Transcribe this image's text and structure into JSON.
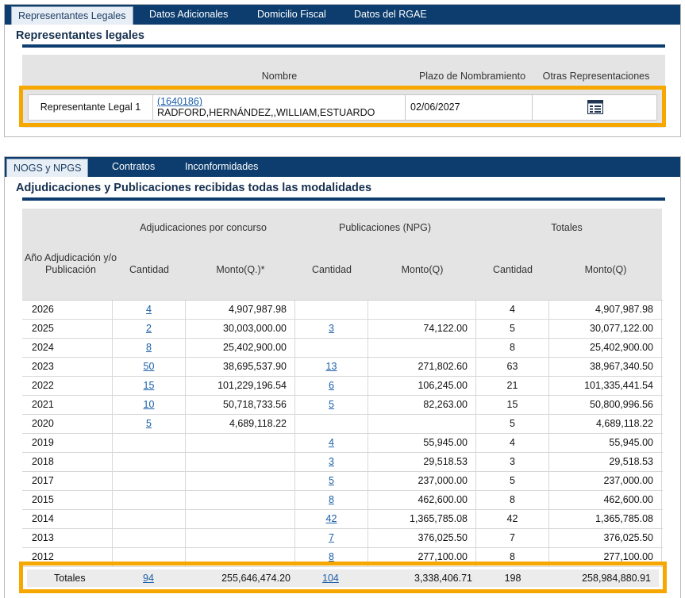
{
  "top_tabs": [
    "Representantes Legales",
    "Datos Adicionales",
    "Domicilio Fiscal",
    "Datos del RGAE"
  ],
  "rep_section": {
    "title": "Representantes legales",
    "headers": {
      "nombre": "Nombre",
      "plazo": "Plazo de Nombramiento",
      "otras": "Otras Representaciones"
    },
    "row": {
      "label": "Representante Legal 1",
      "id_link": "(1640186)",
      "name": "RADFORD,HERNÁNDEZ,,WILLIAM,ESTUARDO",
      "plazo": "02/06/2027",
      "icon": "table-list-icon"
    }
  },
  "bottom_tabs": [
    "NOGS y NPGS",
    "Contratos",
    "Inconformidades"
  ],
  "adj_section": {
    "title": "Adjudicaciones y Publicaciones recibidas todas las modalidades",
    "group_headers": {
      "adj": "Adjudicaciones por concurso",
      "pub": "Publicaciones (NPG)",
      "tot": "Totales"
    },
    "sub_headers": {
      "year": "Año Adjudicación y/o Publicación",
      "adj_cant": "Cantidad",
      "adj_monto": "Monto(Q.)*",
      "pub_cant": "Cantidad",
      "pub_monto": "Monto(Q)",
      "tot_cant": "Cantidad",
      "tot_monto": "Monto(Q)"
    },
    "rows": [
      {
        "year": "2026",
        "adj_cant": "4",
        "adj_monto": "4,907,987.98",
        "pub_cant": "",
        "pub_monto": "",
        "tot_cant": "4",
        "tot_monto": "4,907,987.98"
      },
      {
        "year": "2025",
        "adj_cant": "2",
        "adj_monto": "30,003,000.00",
        "pub_cant": "3",
        "pub_monto": "74,122.00",
        "tot_cant": "5",
        "tot_monto": "30,077,122.00"
      },
      {
        "year": "2024",
        "adj_cant": "8",
        "adj_monto": "25,402,900.00",
        "pub_cant": "",
        "pub_monto": "",
        "tot_cant": "8",
        "tot_monto": "25,402,900.00"
      },
      {
        "year": "2023",
        "adj_cant": "50",
        "adj_monto": "38,695,537.90",
        "pub_cant": "13",
        "pub_monto": "271,802.60",
        "tot_cant": "63",
        "tot_monto": "38,967,340.50"
      },
      {
        "year": "2022",
        "adj_cant": "15",
        "adj_monto": "101,229,196.54",
        "pub_cant": "6",
        "pub_monto": "106,245.00",
        "tot_cant": "21",
        "tot_monto": "101,335,441.54"
      },
      {
        "year": "2021",
        "adj_cant": "10",
        "adj_monto": "50,718,733.56",
        "pub_cant": "5",
        "pub_monto": "82,263.00",
        "tot_cant": "15",
        "tot_monto": "50,800,996.56"
      },
      {
        "year": "2020",
        "adj_cant": "5",
        "adj_monto": "4,689,118.22",
        "pub_cant": "",
        "pub_monto": "",
        "tot_cant": "5",
        "tot_monto": "4,689,118.22"
      },
      {
        "year": "2019",
        "adj_cant": "",
        "adj_monto": "",
        "pub_cant": "4",
        "pub_monto": "55,945.00",
        "tot_cant": "4",
        "tot_monto": "55,945.00"
      },
      {
        "year": "2018",
        "adj_cant": "",
        "adj_monto": "",
        "pub_cant": "3",
        "pub_monto": "29,518.53",
        "tot_cant": "3",
        "tot_monto": "29,518.53"
      },
      {
        "year": "2017",
        "adj_cant": "",
        "adj_monto": "",
        "pub_cant": "5",
        "pub_monto": "237,000.00",
        "tot_cant": "5",
        "tot_monto": "237,000.00"
      },
      {
        "year": "2015",
        "adj_cant": "",
        "adj_monto": "",
        "pub_cant": "8",
        "pub_monto": "462,600.00",
        "tot_cant": "8",
        "tot_monto": "462,600.00"
      },
      {
        "year": "2014",
        "adj_cant": "",
        "adj_monto": "",
        "pub_cant": "42",
        "pub_monto": "1,365,785.08",
        "tot_cant": "42",
        "tot_monto": "1,365,785.08"
      },
      {
        "year": "2013",
        "adj_cant": "",
        "adj_monto": "",
        "pub_cant": "7",
        "pub_monto": "376,025.50",
        "tot_cant": "7",
        "tot_monto": "376,025.50"
      },
      {
        "year": "2012",
        "adj_cant": "",
        "adj_monto": "",
        "pub_cant": "8",
        "pub_monto": "277,100.00",
        "tot_cant": "8",
        "tot_monto": "277,100.00"
      }
    ],
    "totals": {
      "label": "Totales",
      "adj_cant": "94",
      "adj_monto": "255,646,474.20",
      "pub_cant": "104",
      "pub_monto": "3,338,406.71",
      "tot_cant": "198",
      "tot_monto": "258,984,880.91"
    }
  },
  "colors": {
    "navy": "#0c3d6e",
    "highlight": "#f6a800",
    "link": "#1a5fa8"
  }
}
